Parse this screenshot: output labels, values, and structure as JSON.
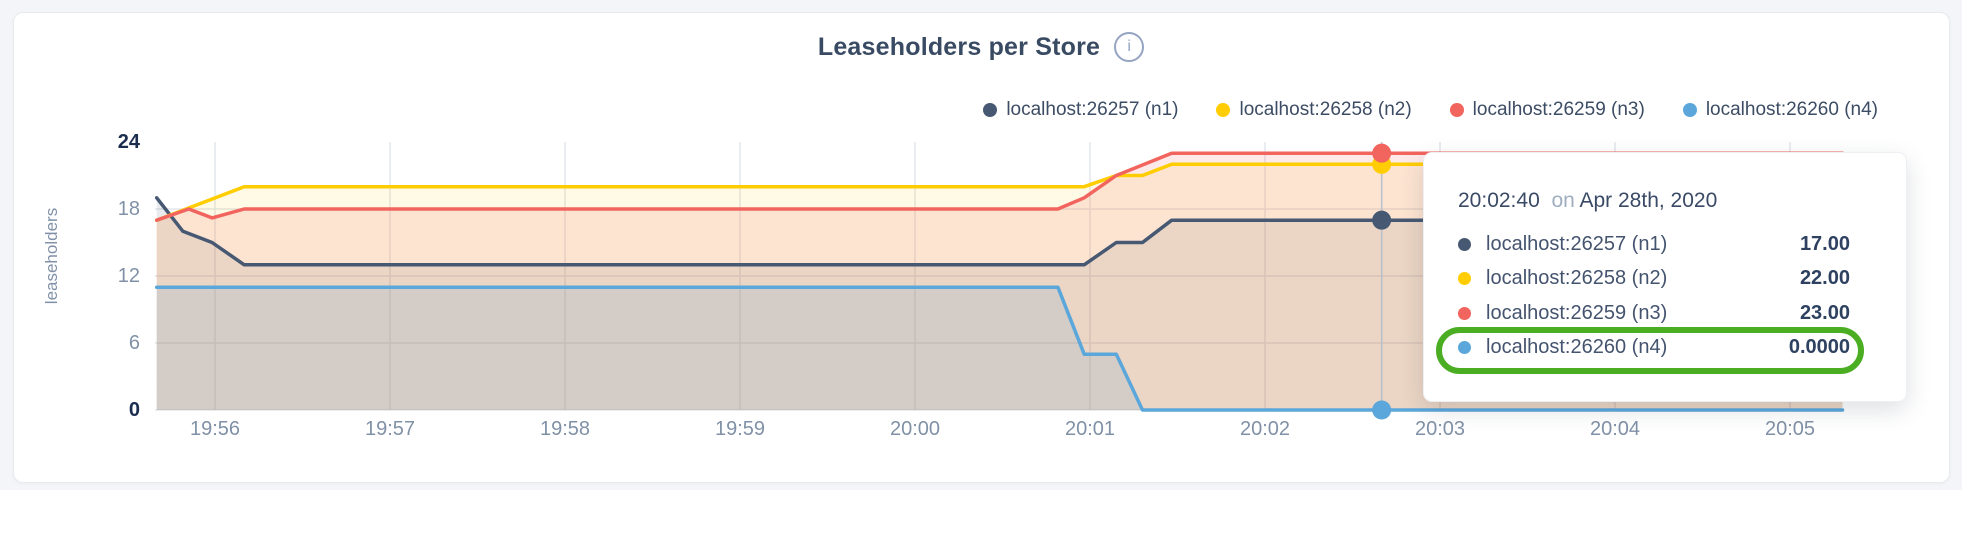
{
  "page": {
    "background": "#f4f5f8",
    "card_border": "#e8eaee"
  },
  "header": {
    "title": "Leaseholders per Store",
    "info_icon_glyph": "i"
  },
  "colors": {
    "grid": "#e2e5ec",
    "axis_text": "#8091a7",
    "axis_text_strong": "#1b2d4e",
    "hover_line": "#b9c0cc",
    "highlight_ring": "#4bad21"
  },
  "legend": {
    "items": [
      {
        "label": "localhost:26257 (n1)",
        "color": "#475872"
      },
      {
        "label": "localhost:26258 (n2)",
        "color": "#ffcd02"
      },
      {
        "label": "localhost:26259 (n3)",
        "color": "#f2645e"
      },
      {
        "label": "localhost:26260 (n4)",
        "color": "#5ba7db"
      }
    ]
  },
  "chart_data": {
    "type": "area",
    "title": "Leaseholders per Store",
    "ylabel": "leaseholders",
    "ylim": [
      0,
      24
    ],
    "grid": true,
    "legend_position": "top-right",
    "x_unit": "seconds after 19:56:00",
    "y_ticks": [
      {
        "value": 0,
        "strong": true
      },
      {
        "value": 6,
        "strong": false
      },
      {
        "value": 12,
        "strong": false
      },
      {
        "value": 18,
        "strong": false
      },
      {
        "value": 24,
        "strong": true
      }
    ],
    "x_ticks": [
      {
        "sec": 0,
        "label": "19:56"
      },
      {
        "sec": 60,
        "label": "19:57"
      },
      {
        "sec": 120,
        "label": "19:58"
      },
      {
        "sec": 180,
        "label": "19:59"
      },
      {
        "sec": 240,
        "label": "20:00"
      },
      {
        "sec": 300,
        "label": "20:01"
      },
      {
        "sec": 360,
        "label": "20:02"
      },
      {
        "sec": 420,
        "label": "20:03"
      },
      {
        "sec": 480,
        "label": "20:04"
      },
      {
        "sec": 540,
        "label": "20:05"
      }
    ],
    "series": [
      {
        "name": "localhost:26257 (n1)",
        "color": "#475872",
        "fill": "rgba(71,88,114,0.12)",
        "points": [
          [
            -20,
            19
          ],
          [
            -11,
            16
          ],
          [
            -1,
            15
          ],
          [
            10,
            13
          ],
          [
            298,
            13
          ],
          [
            309,
            15
          ],
          [
            318,
            15
          ],
          [
            328,
            17
          ],
          [
            558,
            17
          ]
        ]
      },
      {
        "name": "localhost:26258 (n2)",
        "color": "#ffcd02",
        "fill": "rgba(255,205,2,0.10)",
        "points": [
          [
            -20,
            17
          ],
          [
            10,
            20
          ],
          [
            298,
            20
          ],
          [
            309,
            21
          ],
          [
            318,
            21
          ],
          [
            328,
            22
          ],
          [
            558,
            22
          ]
        ]
      },
      {
        "name": "localhost:26259 (n3)",
        "color": "#f2645e",
        "fill": "rgba(242,100,94,0.14)",
        "points": [
          [
            -20,
            17
          ],
          [
            -9,
            18
          ],
          [
            -1,
            17.2
          ],
          [
            10,
            18
          ],
          [
            289,
            18
          ],
          [
            298,
            19
          ],
          [
            309,
            21
          ],
          [
            328,
            23
          ],
          [
            558,
            23
          ]
        ]
      },
      {
        "name": "localhost:26260 (n4)",
        "color": "#5ba7db",
        "fill": "rgba(91,167,219,0.16)",
        "points": [
          [
            -20,
            11
          ],
          [
            289,
            11
          ],
          [
            298,
            5
          ],
          [
            309,
            5
          ],
          [
            318,
            0
          ],
          [
            558,
            0
          ]
        ]
      }
    ]
  },
  "hover": {
    "sec": 400,
    "points": [
      {
        "series": "localhost:26257 (n1)",
        "value": 17
      },
      {
        "series": "localhost:26258 (n2)",
        "value": 22
      },
      {
        "series": "localhost:26259 (n3)",
        "value": 23
      },
      {
        "series": "localhost:26260 (n4)",
        "value": 0
      }
    ]
  },
  "tooltip": {
    "time": "20:02:40",
    "connector": "on",
    "date": "Apr 28th, 2020",
    "rows": [
      {
        "name": "localhost:26257 (n1)",
        "value": "17.00",
        "color": "#475872",
        "highlighted": false
      },
      {
        "name": "localhost:26258 (n2)",
        "value": "22.00",
        "color": "#ffcd02",
        "highlighted": false
      },
      {
        "name": "localhost:26259 (n3)",
        "value": "23.00",
        "color": "#f2645e",
        "highlighted": false
      },
      {
        "name": "localhost:26260 (n4)",
        "value": "0.0000",
        "color": "#5ba7db",
        "highlighted": true
      }
    ]
  }
}
